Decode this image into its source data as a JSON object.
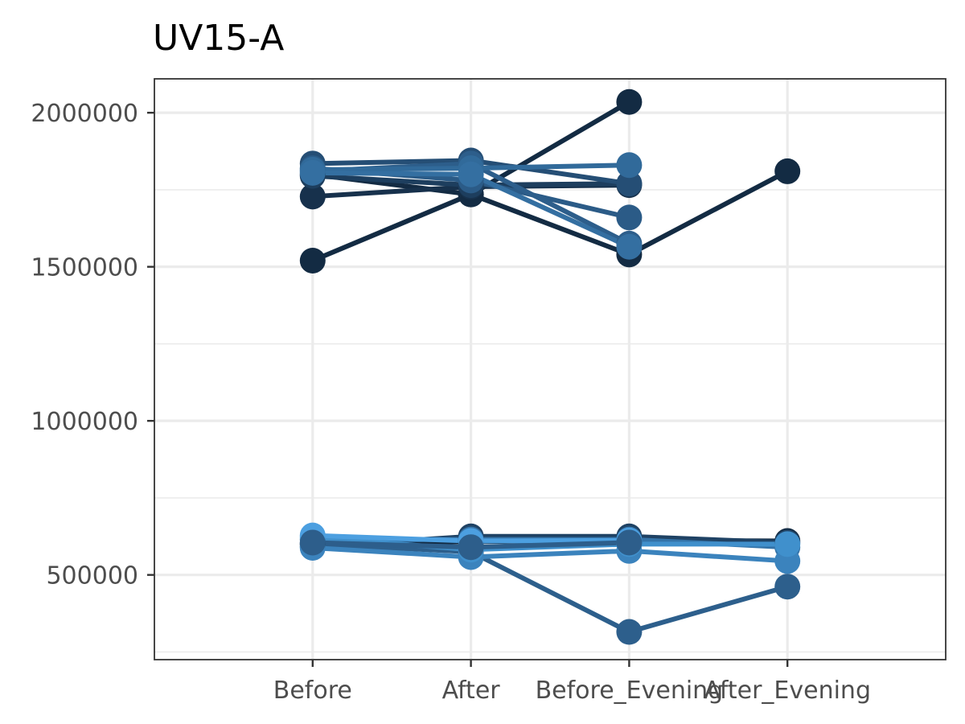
{
  "chart_data": {
    "type": "line",
    "title": "UV15-A",
    "xlabel": "",
    "ylabel": "",
    "categories": [
      "Before",
      "After",
      "Before_Evening",
      "After_Evening"
    ],
    "ylim": [
      225000,
      2110000
    ],
    "y_ticks": [
      500000,
      1000000,
      1500000,
      2000000
    ],
    "y_tick_labels": [
      "500000",
      "1000000",
      "1500000",
      "2000000"
    ],
    "grid": true,
    "legend": "none",
    "series": [
      {
        "color": "#132b43",
        "values": [
          1520000,
          1735000,
          2035000,
          null
        ]
      },
      {
        "color": "#132b43",
        "values": [
          1800000,
          1735000,
          1540000,
          1810000
        ]
      },
      {
        "color": "#17314c",
        "values": [
          1728000,
          1760000,
          1765000,
          null
        ]
      },
      {
        "color": "#1d3e5e",
        "values": [
          1795000,
          1765000,
          1770000,
          null
        ]
      },
      {
        "color": "#254e75",
        "values": [
          1835000,
          1845000,
          1770000,
          null
        ]
      },
      {
        "color": "#2b5b87",
        "values": [
          1820000,
          1780000,
          1660000,
          null
        ]
      },
      {
        "color": "#2d5e8b",
        "values": [
          1810000,
          1835000,
          1575000,
          null
        ]
      },
      {
        "color": "#316a9a",
        "values": [
          1815000,
          1820000,
          1830000,
          null
        ]
      },
      {
        "color": "#346fa1",
        "values": [
          1805000,
          1800000,
          1565000,
          null
        ]
      },
      {
        "color": "#132b43",
        "values": [
          600000,
          608000,
          612000,
          610000
        ]
      },
      {
        "color": "#1f4264",
        "values": [
          592000,
          625000,
          625000,
          605000
        ]
      },
      {
        "color": "#2d5f8c",
        "values": [
          600000,
          575000,
          315000,
          462000
        ]
      },
      {
        "color": "#3473a8",
        "values": [
          615000,
          615000,
          615000,
          590000
        ]
      },
      {
        "color": "#3b83bd",
        "values": [
          588000,
          558000,
          578000,
          545000
        ]
      },
      {
        "color": "#4090cc",
        "values": [
          622000,
          582000,
          600000,
          600000
        ]
      },
      {
        "color": "#4c9fe0",
        "values": [
          628000,
          610000,
          612000,
          null
        ]
      },
      {
        "color": "#2d5e8b",
        "values": [
          605000,
          590000,
          605000,
          null
        ]
      }
    ]
  }
}
